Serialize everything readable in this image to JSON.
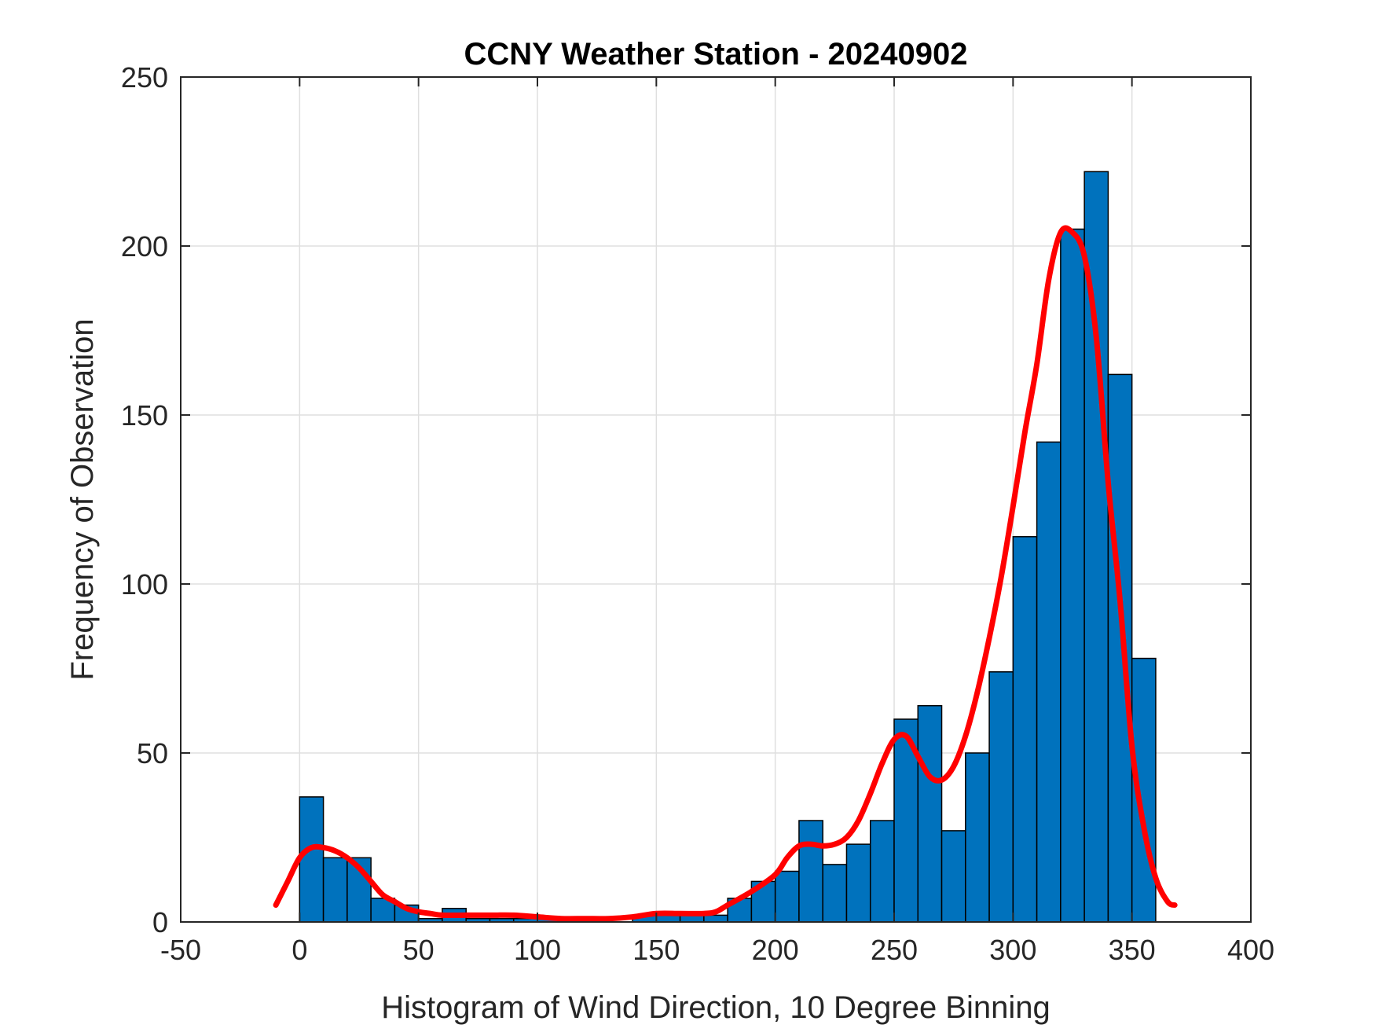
{
  "chart_data": {
    "type": "bar",
    "title": "CCNY Weather Station - 20240902",
    "xlabel": "Histogram of Wind Direction, 10 Degree Binning",
    "ylabel": "Frequency of Observation",
    "xlim": [
      -50,
      400
    ],
    "ylim": [
      0,
      250
    ],
    "xticks": [
      -50,
      0,
      50,
      100,
      150,
      200,
      250,
      300,
      350,
      400
    ],
    "yticks": [
      0,
      50,
      100,
      150,
      200,
      250
    ],
    "grid": true,
    "bin_width": 10,
    "bin_edges_start": [
      0,
      10,
      20,
      30,
      40,
      50,
      60,
      70,
      80,
      90,
      100,
      110,
      120,
      130,
      140,
      150,
      160,
      170,
      180,
      190,
      200,
      210,
      220,
      230,
      240,
      250,
      260,
      270,
      280,
      290,
      300,
      310,
      320,
      330,
      340,
      350
    ],
    "values": [
      37,
      19,
      19,
      7,
      5,
      1,
      4,
      1,
      1,
      1,
      1,
      0,
      0,
      0,
      2,
      3,
      3,
      2,
      7,
      12,
      15,
      30,
      17,
      23,
      30,
      60,
      64,
      27,
      50,
      74,
      114,
      142,
      205,
      222,
      162,
      78
    ],
    "fit_curve": {
      "x": [
        -10,
        -5,
        0,
        5,
        10,
        15,
        20,
        25,
        30,
        35,
        40,
        45,
        50,
        55,
        60,
        70,
        80,
        90,
        100,
        110,
        120,
        130,
        140,
        150,
        160,
        170,
        175,
        180,
        190,
        200,
        205,
        210,
        215,
        220,
        225,
        230,
        235,
        240,
        245,
        250,
        255,
        260,
        265,
        270,
        275,
        280,
        285,
        290,
        295,
        300,
        305,
        310,
        315,
        320,
        325,
        330,
        335,
        340,
        345,
        350,
        355,
        360,
        365,
        368
      ],
      "y": [
        5,
        12,
        19,
        22,
        22,
        21,
        19,
        16,
        12,
        8,
        6,
        4,
        3,
        2.5,
        2,
        2,
        2,
        2,
        1.5,
        1,
        1,
        1,
        1.5,
        2.5,
        2.5,
        2.5,
        3,
        5,
        9,
        14,
        19,
        22.5,
        23,
        22.5,
        23,
        25,
        30,
        38,
        47,
        54,
        55,
        49,
        43,
        42,
        46,
        55,
        68,
        84,
        102,
        123,
        145,
        165,
        190,
        204,
        204,
        197,
        173,
        130,
        95,
        52,
        28,
        13,
        6,
        5
      ]
    },
    "colors": {
      "bars": "#0072bd",
      "curve": "#ff0000"
    }
  }
}
